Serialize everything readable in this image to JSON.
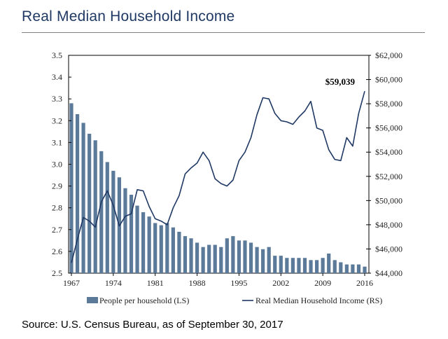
{
  "title": "Real Median Household Income",
  "source": "Source: U.S. Census Bureau, as of September 30, 2017",
  "colors": {
    "bar": "#5b7a99",
    "line": "#1f3864",
    "title": "#1f3864"
  },
  "chart_data": {
    "type": "bar+line",
    "x_ticks": [
      "1967",
      "1974",
      "1981",
      "1988",
      "1995",
      "2002",
      "2009",
      "2016"
    ],
    "left_axis": {
      "ylim": [
        2.5,
        3.5
      ],
      "ticks": [
        "2.5",
        "2.6",
        "2.7",
        "2.8",
        "2.9",
        "3.0",
        "3.1",
        "3.2",
        "3.3",
        "3.4",
        "3.5"
      ]
    },
    "right_axis": {
      "ylim": [
        44000,
        62000
      ],
      "ticks": [
        "$44,000",
        "$46,000",
        "$48,000",
        "$50,000",
        "$52,000",
        "$54,000",
        "$56,000",
        "$58,000",
        "$60,000",
        "$62,000"
      ]
    },
    "years": [
      1967,
      1968,
      1969,
      1970,
      1971,
      1972,
      1973,
      1974,
      1975,
      1976,
      1977,
      1978,
      1979,
      1980,
      1981,
      1982,
      1983,
      1984,
      1985,
      1986,
      1987,
      1988,
      1989,
      1990,
      1991,
      1992,
      1993,
      1994,
      1995,
      1996,
      1997,
      1998,
      1999,
      2000,
      2001,
      2002,
      2003,
      2004,
      2005,
      2006,
      2007,
      2008,
      2009,
      2010,
      2011,
      2012,
      2013,
      2014,
      2015,
      2016
    ],
    "series": [
      {
        "name": "People per household (LS)",
        "type": "bar",
        "axis": "left",
        "values": [
          3.28,
          3.23,
          3.19,
          3.14,
          3.11,
          3.06,
          3.01,
          2.97,
          2.94,
          2.89,
          2.86,
          2.81,
          2.78,
          2.76,
          2.73,
          2.72,
          2.73,
          2.71,
          2.69,
          2.67,
          2.66,
          2.64,
          2.62,
          2.63,
          2.63,
          2.62,
          2.66,
          2.67,
          2.65,
          2.65,
          2.64,
          2.62,
          2.61,
          2.62,
          2.58,
          2.58,
          2.57,
          2.57,
          2.57,
          2.57,
          2.56,
          2.56,
          2.57,
          2.59,
          2.56,
          2.55,
          2.54,
          2.54,
          2.54,
          2.53
        ]
      },
      {
        "name": "Real Median Household Income (RS)",
        "type": "line",
        "axis": "right",
        "values": [
          44850,
          46800,
          48600,
          48300,
          47800,
          49900,
          50800,
          49600,
          47900,
          48700,
          48900,
          50900,
          50800,
          49500,
          48500,
          48300,
          48000,
          49400,
          50400,
          52200,
          52700,
          53100,
          54000,
          53300,
          51800,
          51400,
          51200,
          51700,
          53300,
          54000,
          55200,
          57100,
          58500,
          58400,
          57200,
          56600,
          56500,
          56300,
          56900,
          57400,
          58200,
          56000,
          55800,
          54200,
          53400,
          53300,
          55200,
          54500,
          57200,
          59039
        ]
      }
    ],
    "annotations": [
      {
        "year": 2016,
        "text": "$59,039"
      }
    ],
    "legend": "bottom-center",
    "grid": false
  }
}
